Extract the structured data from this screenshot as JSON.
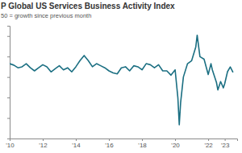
{
  "chart_data": {
    "type": "line",
    "title": "P Global US Services Business Activity Index",
    "subtitle": "50 = growth since previous month",
    "color": "#1b6f82",
    "x": [
      2010,
      2010.25,
      2010.5,
      2010.75,
      2011,
      2011.25,
      2011.5,
      2011.75,
      2012,
      2012.25,
      2012.5,
      2012.75,
      2013,
      2013.25,
      2013.5,
      2013.75,
      2014,
      2014.25,
      2014.5,
      2014.75,
      2015,
      2015.25,
      2015.5,
      2015.75,
      2016,
      2016.25,
      2016.5,
      2016.75,
      2017,
      2017.25,
      2017.5,
      2017.75,
      2018,
      2018.25,
      2018.5,
      2018.75,
      2019,
      2019.25,
      2019.5,
      2019.75,
      2020,
      2020.167,
      2020.25,
      2020.333,
      2020.5,
      2020.75,
      2021,
      2021.25,
      2021.333,
      2021.5,
      2021.75,
      2022,
      2022.167,
      2022.25,
      2022.5,
      2022.583,
      2022.75,
      2022.917,
      2023,
      2023.167,
      2023.333,
      2023.5
    ],
    "values": [
      56.5,
      55.8,
      54.5,
      55,
      56.5,
      54.5,
      53,
      54.5,
      56,
      55,
      52.5,
      54,
      55.5,
      53.5,
      54.5,
      52.5,
      55,
      58,
      60.5,
      58,
      55,
      56.5,
      55.5,
      54.5,
      53,
      52,
      51.5,
      54.5,
      55,
      53,
      55.5,
      55,
      53.5,
      56.5,
      56,
      54.5,
      56,
      53,
      53,
      50.9,
      53.5,
      39.8,
      26.7,
      37.5,
      50,
      56.5,
      58,
      64.7,
      70.4,
      59.9,
      58.7,
      51.2,
      56.5,
      53.5,
      47.3,
      43.7,
      47.8,
      44.7,
      46.8,
      52.6,
      54.9,
      52.3
    ],
    "xlim": [
      2010,
      2023.75
    ],
    "xticks": [
      {
        "value": 2010,
        "label": "'10"
      },
      {
        "value": 2012,
        "label": "'12"
      },
      {
        "value": 2014,
        "label": "'14"
      },
      {
        "value": 2016,
        "label": "'16"
      },
      {
        "value": 2018,
        "label": "'18"
      },
      {
        "value": 2020,
        "label": "'20"
      },
      {
        "value": 2022,
        "label": "'22"
      },
      {
        "value": 2023,
        "label": "'23"
      }
    ],
    "ylim": [
      20,
      75
    ],
    "yticks": [
      20,
      30,
      40,
      50,
      60,
      70
    ],
    "tick_labels": "x",
    "grid": false
  }
}
